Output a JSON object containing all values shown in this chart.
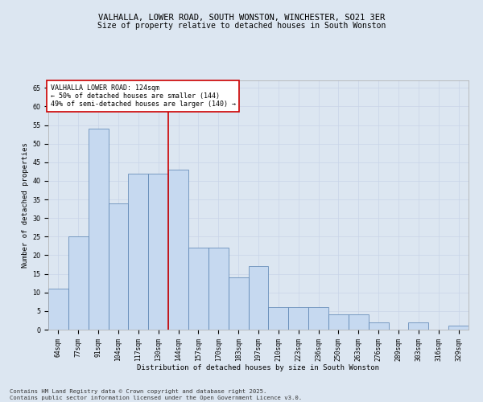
{
  "title_line1": "VALHALLA, LOWER ROAD, SOUTH WONSTON, WINCHESTER, SO21 3ER",
  "title_line2": "Size of property relative to detached houses in South Wonston",
  "xlabel": "Distribution of detached houses by size in South Wonston",
  "ylabel": "Number of detached properties",
  "categories": [
    "64sqm",
    "77sqm",
    "91sqm",
    "104sqm",
    "117sqm",
    "130sqm",
    "144sqm",
    "157sqm",
    "170sqm",
    "183sqm",
    "197sqm",
    "210sqm",
    "223sqm",
    "236sqm",
    "250sqm",
    "263sqm",
    "276sqm",
    "289sqm",
    "303sqm",
    "316sqm",
    "329sqm"
  ],
  "values": [
    11,
    25,
    54,
    34,
    42,
    42,
    43,
    22,
    22,
    14,
    17,
    6,
    6,
    6,
    4,
    4,
    2,
    0,
    2,
    0,
    1
  ],
  "bar_color": "#c6d9f0",
  "bar_edge_color": "#5580b0",
  "vline_x": 5.5,
  "vline_color": "#cc0000",
  "annotation_text": "VALHALLA LOWER ROAD: 124sqm\n← 50% of detached houses are smaller (144)\n49% of semi-detached houses are larger (140) →",
  "annotation_box_color": "#ffffff",
  "annotation_box_edge": "#cc0000",
  "ylim": [
    0,
    67
  ],
  "yticks": [
    0,
    5,
    10,
    15,
    20,
    25,
    30,
    35,
    40,
    45,
    50,
    55,
    60,
    65
  ],
  "grid_color": "#c8d4e8",
  "background_color": "#dce6f1",
  "footer_text": "Contains HM Land Registry data © Crown copyright and database right 2025.\nContains public sector information licensed under the Open Government Licence v3.0.",
  "title_fontsize": 7.5,
  "subtitle_fontsize": 7,
  "axis_label_fontsize": 6.5,
  "tick_fontsize": 5.8,
  "annotation_fontsize": 6.0,
  "footer_fontsize": 5.2
}
